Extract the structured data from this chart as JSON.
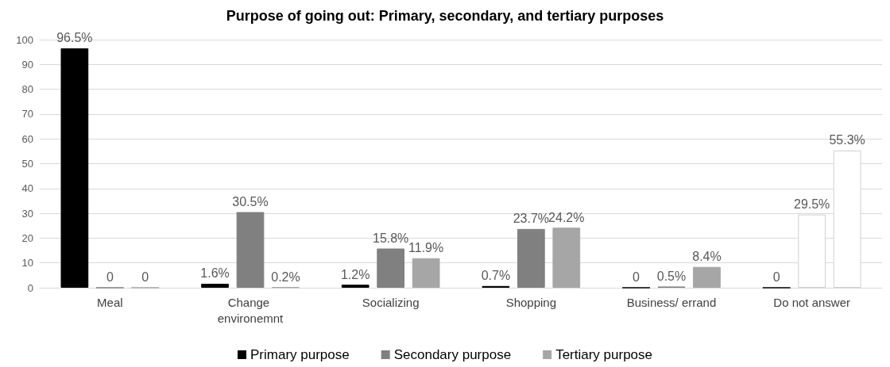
{
  "chart_data": {
    "type": "bar",
    "title": "Purpose of going out: Primary, secondary, and tertiary purposes",
    "categories": [
      "Meal",
      "Change environemnt",
      "Socializing",
      "Shopping",
      "Business/ errand",
      "Do not answer"
    ],
    "series": [
      {
        "name": "Primary purpose",
        "color": "#000000",
        "values": [
          96.5,
          1.6,
          1.2,
          0.7,
          0,
          0
        ],
        "value_labels": [
          "96.5%",
          "1.6%",
          "1.2%",
          "0.7%",
          "0",
          "0"
        ]
      },
      {
        "name": "Secondary purpose",
        "color": "#808080",
        "colors": [
          "#808080",
          "#808080",
          "#808080",
          "#808080",
          "#808080",
          "#ffffff"
        ],
        "values": [
          0,
          30.5,
          15.8,
          23.7,
          0.5,
          29.5
        ],
        "value_labels": [
          "0",
          "30.5%",
          "15.8%",
          "23.7%",
          "0.5%",
          "29.5%"
        ]
      },
      {
        "name": "Tertiary purpose",
        "color": "#a6a6a6",
        "colors": [
          "#a6a6a6",
          "#a6a6a6",
          "#a6a6a6",
          "#a6a6a6",
          "#a6a6a6",
          "#ffffff"
        ],
        "values": [
          0,
          0.2,
          11.9,
          24.2,
          8.4,
          55.3
        ],
        "value_labels": [
          "0",
          "0.2%",
          "11.9%",
          "24.2%",
          "8.4%",
          "55.3%"
        ]
      }
    ],
    "ylim": [
      0,
      100
    ],
    "yticks": [
      0,
      10,
      20,
      30,
      40,
      50,
      60,
      70,
      80,
      90,
      100
    ],
    "grid": "y",
    "legend": "bottom"
  }
}
